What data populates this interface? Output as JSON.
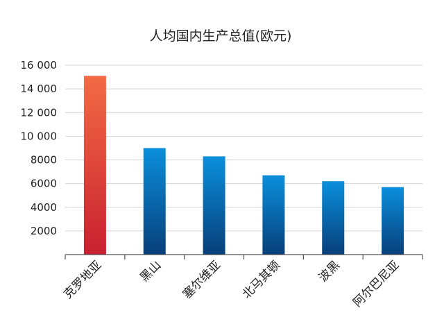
{
  "chart_data": {
    "type": "bar",
    "title": "人均国内生产总值(欧元)",
    "xlabel": "",
    "ylabel": "",
    "categories": [
      "克罗地亚",
      "黑山",
      "塞尔维亚",
      "北马其顿",
      "波黑",
      "阿尔巴尼亚"
    ],
    "values": [
      15100,
      9000,
      8300,
      6700,
      6200,
      5700
    ],
    "ylim": [
      0,
      16000
    ],
    "y_ticks": [
      2000,
      4000,
      6000,
      8000,
      10000,
      12000,
      14000,
      16000
    ],
    "y_tick_labels": [
      "2000",
      "4000",
      "6000",
      "8000",
      "10 000",
      "12 000",
      "14 000",
      "16 000"
    ],
    "grid": true,
    "legend": "none",
    "highlight_index": 0,
    "colors": {
      "highlight_top": "#f36b45",
      "highlight_bottom": "#c8202f",
      "bar_top": "#0a8fdc",
      "bar_bottom": "#073f7a"
    }
  }
}
